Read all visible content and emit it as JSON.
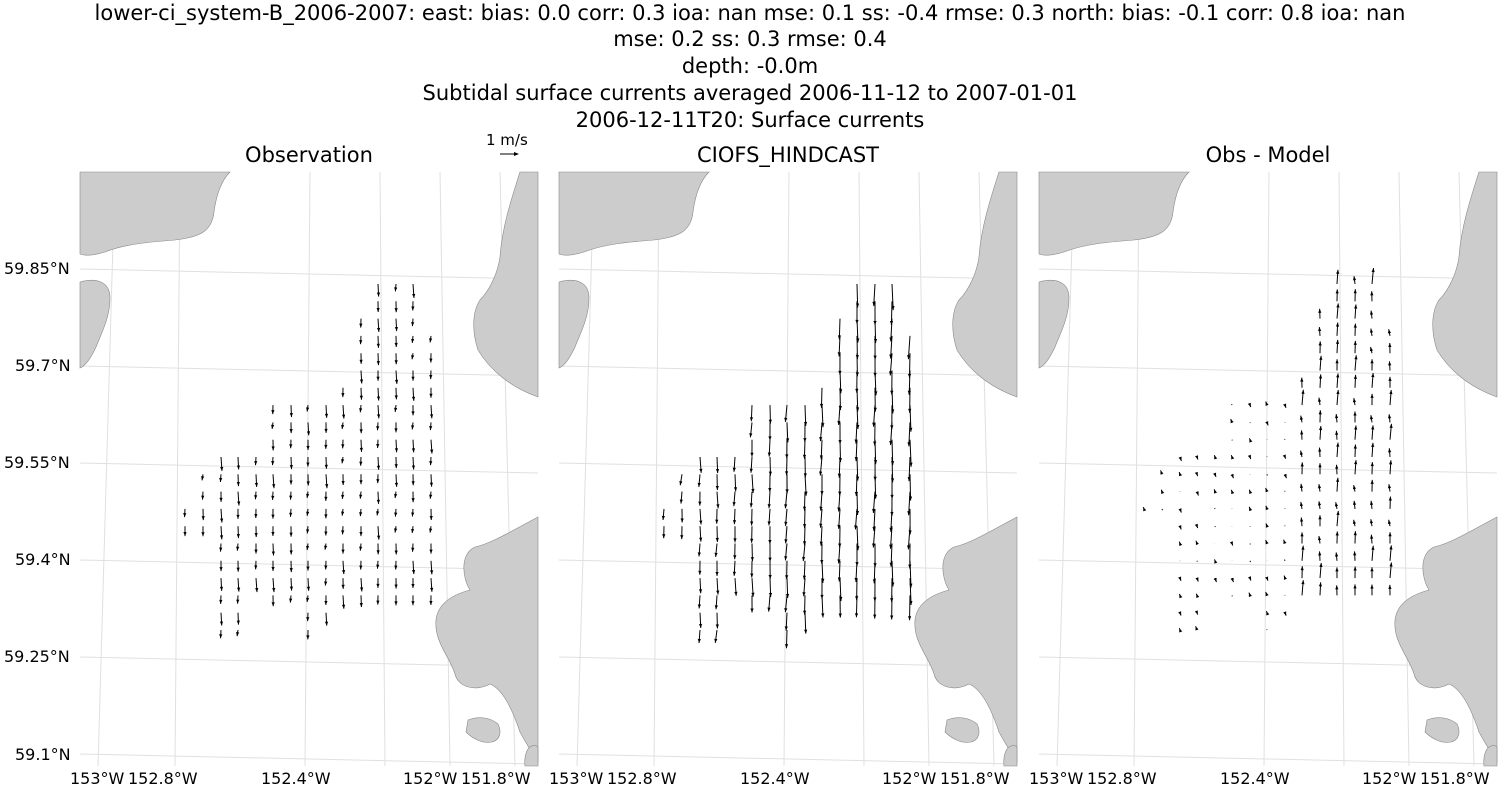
{
  "titles": {
    "line1": "lower-ci_system-B_2006-2007: east: bias: 0.0  corr: 0.3  ioa: nan  mse: 0.1  ss: -0.4  rmse: 0.3  north: bias: -0.1  corr: 0.8  ioa: nan",
    "line2": "mse: 0.2  ss: 0.3  rmse: 0.4",
    "line3": "depth: -0.0m",
    "line4": "Subtidal surface currents averaged 2006-11-12 to 2007-01-01",
    "line5": "2006-12-11T20: Surface currents"
  },
  "scale_key": {
    "label": "1 m/s"
  },
  "panels": [
    {
      "title": "Observation"
    },
    {
      "title": "CIOFS_HINDCAST"
    },
    {
      "title": "Obs - Model"
    }
  ],
  "y_ticks": [
    "59.85°N",
    "59.7°N",
    "59.55°N",
    "59.4°N",
    "59.25°N",
    "59.1°N"
  ],
  "x_ticks": [
    "153°W",
    "152.8°W",
    "152.4°W",
    "152°W",
    "151.8°W"
  ],
  "colors": {
    "land": "#cccccc",
    "coast": "#888888",
    "grid": "#e0e0e0",
    "arrow": "#000000"
  }
}
